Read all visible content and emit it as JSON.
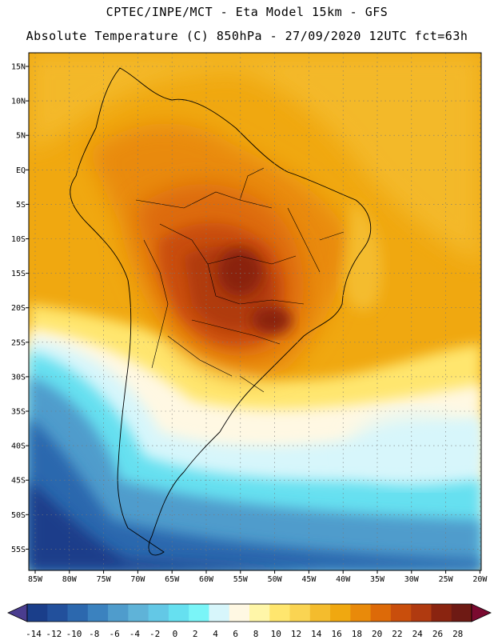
{
  "header": {
    "line1": "CPTEC/INPE/MCT -  Eta Model 15km - GFS",
    "line2": "Absolute Temperature (C) 850hPa - 27/09/2020 12UTC fct=63h"
  },
  "map": {
    "lat_labels": [
      "15N",
      "10N",
      "5N",
      "EQ",
      "5S",
      "10S",
      "15S",
      "20S",
      "25S",
      "30S",
      "35S",
      "40S",
      "45S",
      "50S",
      "55S"
    ],
    "lon_labels": [
      "85W",
      "80W",
      "75W",
      "70W",
      "65W",
      "60W",
      "55W",
      "50W",
      "45W",
      "40W",
      "35W",
      "30W",
      "25W",
      "20W"
    ]
  },
  "colorbar": {
    "labels": [
      "-14",
      "-12",
      "-10",
      "-8",
      "-6",
      "-4",
      "-2",
      "0",
      "2",
      "4",
      "6",
      "8",
      "10",
      "12",
      "14",
      "16",
      "18",
      "20",
      "22",
      "24",
      "26",
      "28"
    ],
    "colors": [
      "#1a3e8a",
      "#22509c",
      "#2c68ae",
      "#3b82bf",
      "#4f9ccc",
      "#5fb3d8",
      "#63c8e6",
      "#66e0f0",
      "#7af5f8",
      "#d7f6fb",
      "#fff8e3",
      "#fff6a8",
      "#ffe66e",
      "#fad452",
      "#f4bc2d",
      "#f0a810",
      "#e98a0a",
      "#dd6a08",
      "#c94e0c",
      "#b03a10",
      "#8a2410",
      "#6e1a14"
    ],
    "under_color": "#4a3d8f",
    "over_color": "#7a0a30"
  }
}
